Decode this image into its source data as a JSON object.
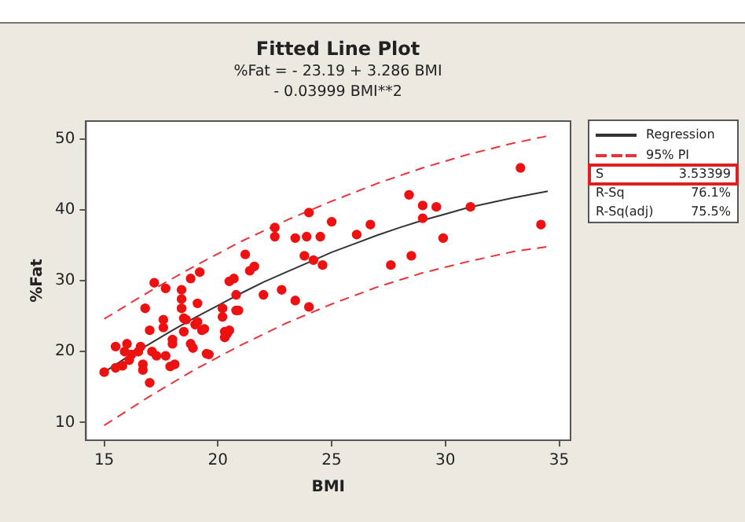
{
  "chart_data": {
    "type": "scatter",
    "title": "Fitted Line Plot",
    "subtitle": "%Fat =  - 23.19 + 3.286 BMI\n- 0.03999 BMI**2",
    "xlabel": "BMI",
    "ylabel": "%Fat",
    "xlim": [
      14.2,
      35.5
    ],
    "xticks": [
      15,
      20,
      25,
      30,
      35
    ],
    "ylim": [
      7.5,
      52.5
    ],
    "yticks": [
      10,
      20,
      30,
      40,
      50
    ],
    "grid": false,
    "legend": "right",
    "marker": "circle",
    "annotations": [
      "S",
      "3.53399",
      "R-Sq",
      "76.1%",
      "R-Sq(adj)",
      "75.5%"
    ],
    "series": [
      {
        "color": "#ee1111",
        "x": [
          15.0,
          15.5,
          15.5,
          15.8,
          15.9,
          16.0,
          16.1,
          16.2,
          16.5,
          16.6,
          16.7,
          16.7,
          16.8,
          17.0,
          17.0,
          17.2,
          17.1,
          17.3,
          17.6,
          17.6,
          17.7,
          17.7,
          17.9,
          18.0,
          18.0,
          18.1,
          18.4,
          18.4,
          18.4,
          18.5,
          18.5,
          18.6,
          18.8,
          18.8,
          18.9,
          19.0,
          19.1,
          19.1,
          19.2,
          19.3,
          19.4,
          19.5,
          19.6,
          20.2,
          20.2,
          20.3,
          20.3,
          20.4,
          20.5,
          20.5,
          20.7,
          20.8,
          20.8,
          20.9,
          21.2,
          21.4,
          21.6,
          22.0,
          22.5,
          22.5,
          22.8,
          23.4,
          23.4,
          23.8,
          23.9,
          24.0,
          24.0,
          24.2,
          24.5,
          24.6,
          25.0,
          26.1,
          26.7,
          27.6,
          28.4,
          28.5,
          29.0,
          29.0,
          29.6,
          29.9,
          31.1,
          33.3,
          34.2
        ],
        "values": [
          17.1,
          20.7,
          17.7,
          18.0,
          20.0,
          21.1,
          18.8,
          19.6,
          20.0,
          20.7,
          18.2,
          17.4,
          26.1,
          23.0,
          15.6,
          29.7,
          20.0,
          19.4,
          23.4,
          24.5,
          28.9,
          19.4,
          17.9,
          21.1,
          21.7,
          18.2,
          28.7,
          27.4,
          26.1,
          24.7,
          22.8,
          24.5,
          30.3,
          21.1,
          20.5,
          23.8,
          26.8,
          24.2,
          31.2,
          23.0,
          23.2,
          19.7,
          19.6,
          26.1,
          24.9,
          22.8,
          22.0,
          22.5,
          23.0,
          29.9,
          30.3,
          28.0,
          25.8,
          25.8,
          33.7,
          31.4,
          32.0,
          28.0,
          37.5,
          36.2,
          28.7,
          27.2,
          36.0,
          33.5,
          36.2,
          39.6,
          26.3,
          32.9,
          36.2,
          32.2,
          38.3,
          36.5,
          37.9,
          32.2,
          42.1,
          33.5,
          40.6,
          38.8,
          40.4,
          36.0,
          40.4,
          45.9,
          37.9
        ]
      },
      {
        "type": "line",
        "name": "Regression",
        "color": "#333333",
        "line_style": "solid",
        "marker": "none",
        "x": [
          15,
          16,
          17,
          18,
          19,
          20,
          21,
          22,
          23,
          24,
          25,
          26,
          27,
          28,
          29,
          30,
          31,
          32,
          33,
          34,
          34.5
        ],
        "values": [
          17.1,
          19.2,
          21.1,
          23.0,
          24.8,
          26.5,
          28.2,
          29.8,
          31.2,
          32.6,
          34.0,
          35.2,
          36.4,
          37.5,
          38.5,
          39.4,
          40.3,
          41.0,
          41.7,
          42.3,
          42.6
        ]
      },
      {
        "type": "line",
        "name": "95% PI",
        "color": "#e8333a",
        "line_style": "dashed",
        "marker": "none",
        "x": [
          15,
          17,
          19,
          21,
          23,
          25,
          27,
          29,
          31,
          33,
          34.5
        ],
        "values": [
          24.6,
          28.5,
          32.1,
          35.5,
          38.5,
          41.2,
          43.7,
          45.9,
          47.8,
          49.4,
          50.4
        ]
      },
      {
        "type": "line",
        "color": "#e8333a",
        "line_style": "dashed",
        "marker": "none",
        "x": [
          15,
          17,
          19,
          21,
          23,
          25,
          27,
          29,
          31,
          33,
          34.5
        ],
        "values": [
          9.6,
          13.7,
          17.5,
          20.9,
          24.0,
          26.7,
          29.1,
          31.1,
          32.7,
          34.1,
          34.8
        ]
      }
    ]
  }
}
